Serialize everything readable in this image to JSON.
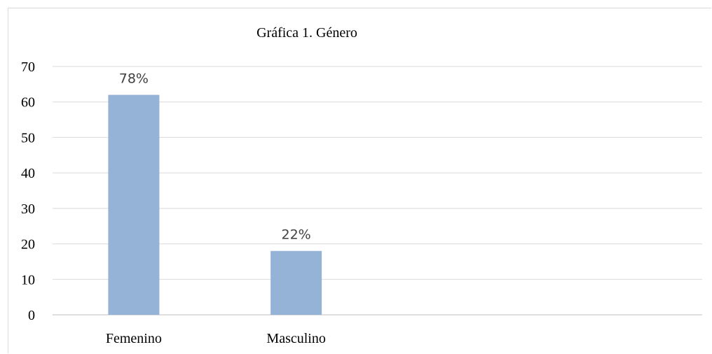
{
  "chart_data": {
    "type": "bar",
    "title": "Gráfica 1. Género",
    "categories": [
      "Femenino",
      "Masculino"
    ],
    "values": [
      62,
      18
    ],
    "data_labels": [
      "78%",
      "22%"
    ],
    "ylim": [
      0,
      70
    ],
    "yticks": [
      0,
      10,
      20,
      30,
      40,
      50,
      60,
      70
    ],
    "xlabel": "",
    "ylabel": "",
    "grid": true,
    "legend": "none",
    "colors": {
      "bar": "#95b3d7",
      "grid": "#d9d9d9",
      "axis": "#bfbfbf",
      "text": "#000000",
      "label": "#404040"
    }
  }
}
